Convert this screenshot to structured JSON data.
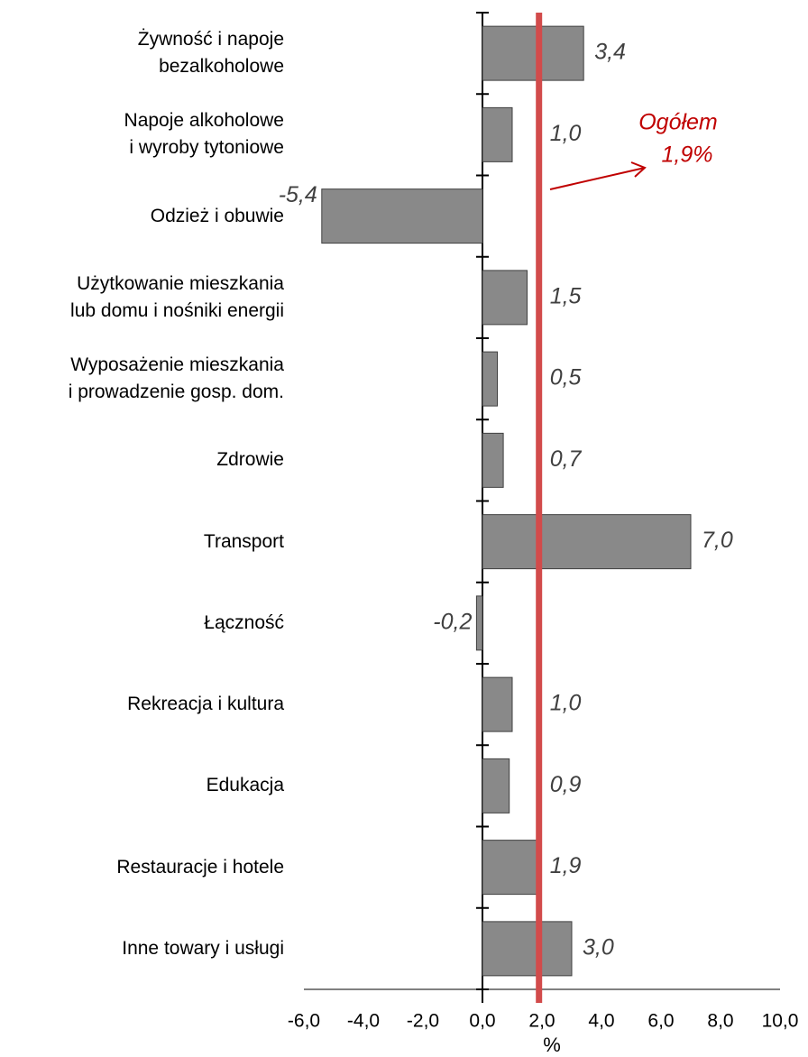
{
  "chart_data": {
    "type": "bar",
    "orientation": "horizontal",
    "categories": [
      "Żywność i napoje\nbezalkoholowe",
      "Napoje alkoholowe\ni wyroby tytoniowe",
      "Odzież i obuwie",
      "Użytkowanie mieszkania\nlub domu i nośniki energii",
      "Wyposażenie mieszkania\ni prowadzenie gosp. dom.",
      "Zdrowie",
      "Transport",
      "Łączność",
      "Rekreacja i kultura",
      "Edukacja",
      "Restauracje i hotele",
      "Inne towary i usługi"
    ],
    "values": [
      3.4,
      1.0,
      -5.4,
      1.5,
      0.5,
      0.7,
      7.0,
      -0.2,
      1.0,
      0.9,
      1.9,
      3.0
    ],
    "value_labels": [
      "3,4",
      "1,0",
      "-5,4",
      "1,5",
      "0,5",
      "0,7",
      "7,0",
      "-0,2",
      "1,0",
      "0,9",
      "1,9",
      "3,0"
    ],
    "color": "#898989",
    "xlim": [
      -6,
      10
    ],
    "xticks": [
      {
        "value": -6,
        "label": "-6,0"
      },
      {
        "value": -4,
        "label": "-4,0"
      },
      {
        "value": -2,
        "label": "-2,0"
      },
      {
        "value": 0,
        "label": "0,0"
      },
      {
        "value": 2,
        "label": "2,0"
      },
      {
        "value": 4,
        "label": "4,0"
      },
      {
        "value": 6,
        "label": "6,0"
      },
      {
        "value": 8,
        "label": "8,0"
      },
      {
        "value": 10,
        "label": "10,0"
      }
    ],
    "xlabel": "%",
    "grid": false,
    "reference_line": {
      "value": 1.9,
      "label": "Ogółem",
      "value_label": "1,9%",
      "color": "#d24b4b"
    }
  }
}
